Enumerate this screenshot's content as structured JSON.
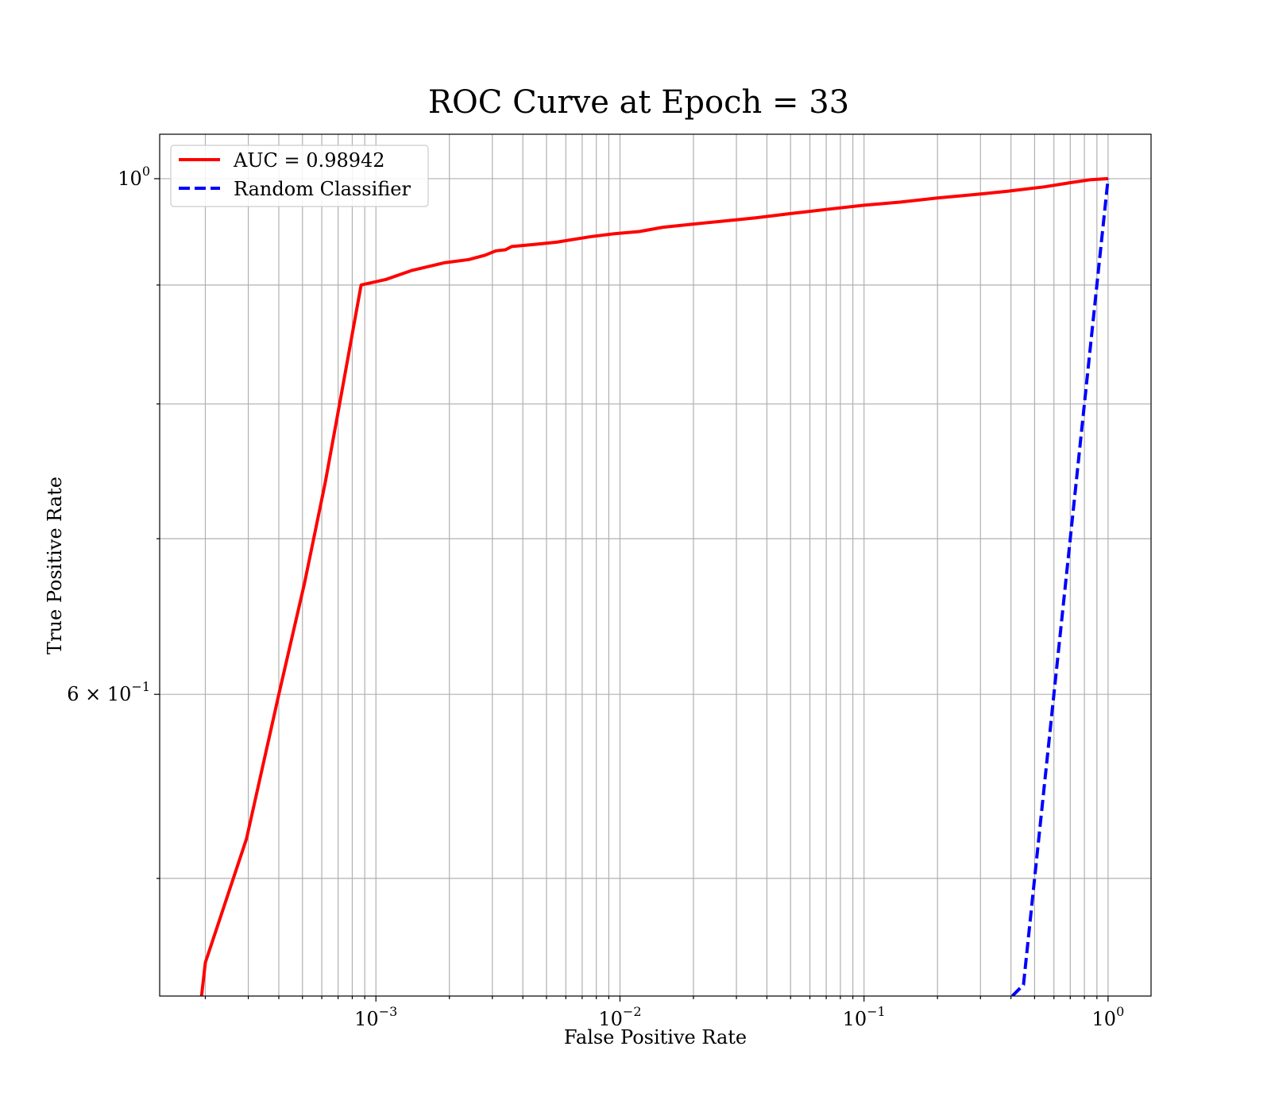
{
  "chart_data": {
    "type": "line",
    "title": "ROC Curve at Epoch = 33",
    "xlabel": "False Positive Rate",
    "ylabel": "True Positive Rate",
    "xscale": "log",
    "yscale": "log",
    "xlim": [
      0.00013,
      1.5
    ],
    "ylim": [
      0.445,
      1.045
    ],
    "grid": true,
    "legend_position": "top-left",
    "xticks": [
      {
        "value": 0.001,
        "base": "10",
        "exp": "−3"
      },
      {
        "value": 0.01,
        "base": "10",
        "exp": "−2"
      },
      {
        "value": 0.1,
        "base": "10",
        "exp": "−1"
      },
      {
        "value": 1,
        "base": "10",
        "exp": "0"
      }
    ],
    "yticks": [
      {
        "value": 1.0,
        "base": "10",
        "exp": "0"
      },
      {
        "value": 0.6,
        "base": "6 × 10",
        "exp": "−1"
      }
    ],
    "yminor_grid": [
      0.5,
      0.7,
      0.8,
      0.9
    ],
    "series": [
      {
        "name": "AUC = 0.98942",
        "color": "#ff0000",
        "style": "solid",
        "x": [
          0.000193,
          0.0002,
          0.000295,
          0.0004,
          0.00051,
          0.00062,
          0.00071,
          0.00087,
          0.0011,
          0.0014,
          0.0019,
          0.0024,
          0.0028,
          0.0031,
          0.0034,
          0.0036,
          0.0045,
          0.0055,
          0.0075,
          0.0095,
          0.012,
          0.015,
          0.02,
          0.027,
          0.036,
          0.05,
          0.07,
          0.1,
          0.14,
          0.2,
          0.3,
          0.4,
          0.55,
          0.7,
          0.85,
          1.0
        ],
        "y": [
          0.445,
          0.46,
          0.52,
          0.6,
          0.67,
          0.74,
          0.8,
          0.9,
          0.905,
          0.913,
          0.92,
          0.923,
          0.927,
          0.931,
          0.932,
          0.935,
          0.937,
          0.939,
          0.944,
          0.947,
          0.949,
          0.953,
          0.956,
          0.959,
          0.962,
          0.966,
          0.97,
          0.974,
          0.977,
          0.981,
          0.985,
          0.988,
          0.992,
          0.996,
          0.999,
          1.0
        ]
      },
      {
        "name": "Random Classifier",
        "color": "#0000ff",
        "style": "dashed",
        "x": [
          0.405,
          0.45,
          0.5,
          0.6,
          0.7,
          0.8,
          0.9,
          1.0
        ],
        "y": [
          0.445,
          0.45,
          0.5,
          0.6,
          0.7,
          0.8,
          0.9,
          1.0
        ]
      }
    ]
  }
}
